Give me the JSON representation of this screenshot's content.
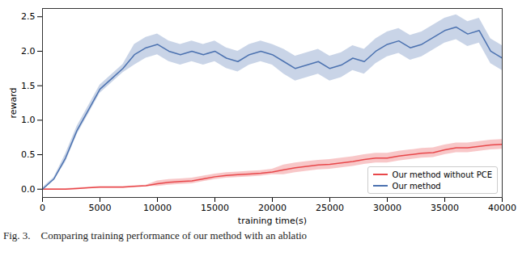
{
  "chart_data": {
    "type": "line",
    "caption": "Fig. 3.    Comparing training performance of our method with an ablatio",
    "x_label": "training time(s)",
    "y_label": "reward",
    "x": [
      0,
      1000,
      2000,
      3000,
      4000,
      5000,
      6000,
      7000,
      8000,
      9000,
      10000,
      11000,
      12000,
      13000,
      14000,
      15000,
      16000,
      17000,
      18000,
      19000,
      20000,
      21000,
      22000,
      23000,
      24000,
      25000,
      26000,
      27000,
      28000,
      29000,
      30000,
      31000,
      32000,
      33000,
      34000,
      35000,
      36000,
      37000,
      38000,
      39000,
      40000
    ],
    "series": [
      {
        "name": "Our method without PCE",
        "color": "#e8474a",
        "values": [
          0,
          0,
          0,
          0.01,
          0.02,
          0.03,
          0.03,
          0.03,
          0.04,
          0.05,
          0.08,
          0.1,
          0.11,
          0.12,
          0.15,
          0.18,
          0.2,
          0.21,
          0.22,
          0.23,
          0.25,
          0.28,
          0.31,
          0.33,
          0.35,
          0.36,
          0.38,
          0.4,
          0.43,
          0.45,
          0.45,
          0.48,
          0.5,
          0.52,
          0.53,
          0.57,
          0.6,
          0.6,
          0.62,
          0.64,
          0.65
        ],
        "lower": [
          -0.01,
          -0.01,
          -0.01,
          0,
          0.01,
          0.02,
          0.02,
          0.02,
          0.03,
          0.04,
          0.04,
          0.06,
          0.07,
          0.08,
          0.11,
          0.14,
          0.16,
          0.17,
          0.18,
          0.19,
          0.21,
          0.21,
          0.24,
          0.26,
          0.28,
          0.29,
          0.31,
          0.33,
          0.36,
          0.38,
          0.38,
          0.41,
          0.43,
          0.45,
          0.46,
          0.5,
          0.53,
          0.53,
          0.55,
          0.57,
          0.58
        ],
        "upper": [
          0.01,
          0.01,
          0.01,
          0.02,
          0.03,
          0.04,
          0.04,
          0.04,
          0.05,
          0.06,
          0.12,
          0.14,
          0.15,
          0.16,
          0.19,
          0.22,
          0.24,
          0.25,
          0.26,
          0.27,
          0.29,
          0.35,
          0.38,
          0.4,
          0.42,
          0.43,
          0.45,
          0.47,
          0.5,
          0.52,
          0.52,
          0.55,
          0.57,
          0.59,
          0.6,
          0.64,
          0.67,
          0.67,
          0.69,
          0.71,
          0.72
        ]
      },
      {
        "name": "Our method",
        "color": "#4c72b0",
        "values": [
          0,
          0.15,
          0.45,
          0.85,
          1.15,
          1.45,
          1.6,
          1.75,
          1.95,
          2.05,
          2.1,
          2.0,
          1.95,
          2.0,
          1.95,
          2.0,
          1.9,
          1.85,
          1.95,
          2.0,
          1.95,
          1.85,
          1.75,
          1.8,
          1.85,
          1.75,
          1.8,
          1.9,
          1.85,
          2.0,
          2.1,
          2.15,
          2.05,
          2.1,
          2.2,
          2.3,
          2.35,
          2.25,
          2.3,
          2.0,
          1.9
        ],
        "lower": [
          -0.02,
          0.13,
          0.39,
          0.79,
          1.09,
          1.39,
          1.54,
          1.69,
          1.8,
          1.9,
          1.95,
          1.85,
          1.8,
          1.85,
          1.8,
          1.85,
          1.75,
          1.7,
          1.8,
          1.85,
          1.8,
          1.67,
          1.57,
          1.62,
          1.67,
          1.57,
          1.62,
          1.72,
          1.67,
          1.82,
          1.92,
          1.97,
          1.87,
          1.92,
          2.02,
          2.12,
          2.17,
          2.07,
          2.12,
          1.82,
          1.72
        ],
        "upper": [
          0.02,
          0.17,
          0.51,
          0.91,
          1.21,
          1.51,
          1.66,
          1.81,
          2.1,
          2.2,
          2.25,
          2.15,
          2.1,
          2.15,
          2.1,
          2.15,
          2.05,
          2.0,
          2.1,
          2.15,
          2.1,
          2.03,
          1.93,
          1.98,
          2.03,
          1.93,
          1.98,
          2.08,
          2.03,
          2.18,
          2.28,
          2.33,
          2.23,
          2.28,
          2.38,
          2.48,
          2.53,
          2.43,
          2.48,
          2.18,
          2.08
        ]
      }
    ],
    "xlim": [
      0,
      40000
    ],
    "xticks": [
      0,
      5000,
      10000,
      15000,
      20000,
      25000,
      30000,
      35000,
      40000
    ],
    "ylim": [
      -0.12,
      2.62
    ],
    "yticks": [
      {
        "value": 0,
        "label": "0.0"
      },
      0.5,
      {
        "value": 1,
        "label": "1.0"
      },
      1.5,
      {
        "value": 2,
        "label": "2.0"
      },
      2.5
    ],
    "grid": false,
    "legend": "lower right"
  }
}
